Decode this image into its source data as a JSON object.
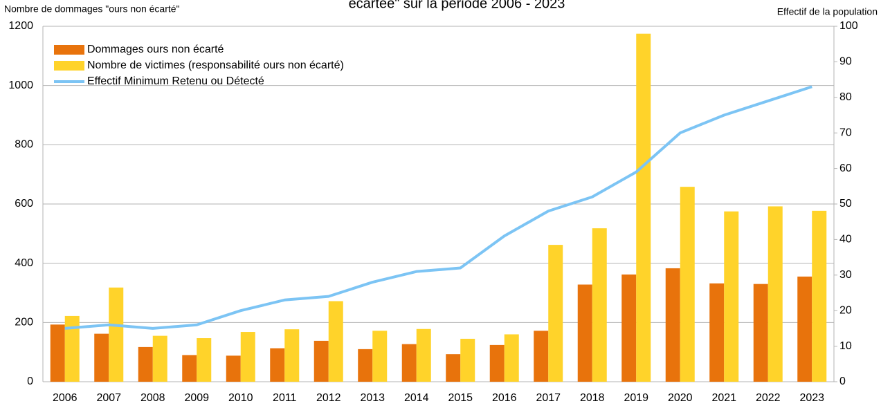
{
  "chart_data": {
    "type": "bar",
    "title": "écartée\" sur la période 2006 - 2023",
    "y_label": "Nombre de dommages \"ours non écarté\"",
    "y2_label": "Effectif de la population",
    "categories": [
      "2006",
      "2007",
      "2008",
      "2009",
      "2010",
      "2011",
      "2012",
      "2013",
      "2014",
      "2015",
      "2016",
      "2017",
      "2018",
      "2019",
      "2020",
      "2021",
      "2022",
      "2023"
    ],
    "series": [
      {
        "name": "Dommages ours non écarté",
        "color": "#e8730c",
        "type": "bar",
        "values": [
          193,
          162,
          117,
          90,
          88,
          113,
          138,
          110,
          127,
          93,
          124,
          172,
          328,
          362,
          383,
          332,
          330,
          355
        ]
      },
      {
        "name": "Nombre de victimes (responsabilité ours non écarté)",
        "color": "#ffd32a",
        "type": "bar",
        "values": [
          222,
          318,
          155,
          147,
          168,
          177,
          272,
          172,
          178,
          145,
          160,
          462,
          518,
          1175,
          658,
          575,
          592,
          577
        ]
      },
      {
        "name": "Effectif Minimum Retenu ou Détecté",
        "color": "#7cc4f4",
        "type": "line",
        "axis": "y2",
        "values": [
          15,
          16,
          15,
          16,
          20,
          23,
          24,
          28,
          31,
          32,
          41,
          48,
          52,
          59,
          70,
          75,
          79,
          83
        ]
      }
    ],
    "ylim": [
      0,
      1200
    ],
    "yticks": [
      0,
      200,
      400,
      600,
      800,
      1000,
      1200
    ],
    "y2lim": [
      0,
      100
    ],
    "y2ticks": [
      0,
      10,
      20,
      30,
      40,
      50,
      60,
      70,
      80,
      90,
      100
    ],
    "grid": true,
    "legend": "top-left"
  }
}
